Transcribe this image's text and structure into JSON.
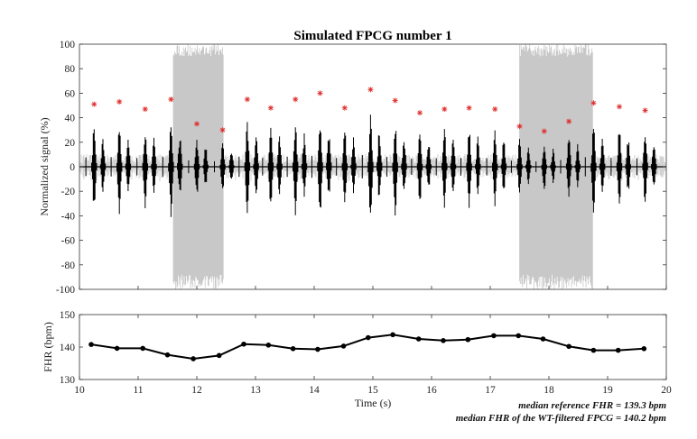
{
  "chart_data": [
    {
      "type": "line",
      "title": "Simulated FPCG number 1",
      "xlabel": "",
      "ylabel": "Normalized signal (%)",
      "xlim": [
        10,
        20
      ],
      "ylim": [
        -100,
        100
      ],
      "yticks": [
        "100",
        "80",
        "60",
        "40",
        "20",
        "0",
        "-20",
        "-40",
        "-60",
        "-80",
        "-100"
      ],
      "noise_segments_s": [
        [
          11.6,
          12.45
        ],
        [
          17.5,
          18.75
        ]
      ],
      "peaks": {
        "marker": "*",
        "color": "#e03030",
        "x": [
          10.25,
          10.68,
          11.12,
          11.56,
          12.0,
          12.44,
          12.86,
          13.26,
          13.68,
          14.1,
          14.52,
          14.96,
          15.38,
          15.8,
          16.22,
          16.64,
          17.08,
          17.5,
          17.92,
          18.34,
          18.76,
          19.2,
          19.64
        ],
        "y": [
          51,
          53,
          47,
          55,
          35,
          30,
          55,
          48,
          55,
          60,
          48,
          63,
          54,
          44,
          47,
          48,
          47,
          33,
          29,
          37,
          52,
          49,
          46
        ]
      },
      "signal_color": "#000000",
      "noise_color": "#c8c8c8"
    },
    {
      "type": "line",
      "xlabel": "Time (s)",
      "ylabel": "FHR (bpm)",
      "xlim": [
        10,
        20
      ],
      "ylim": [
        130,
        150
      ],
      "xticks": [
        "10",
        "11",
        "12",
        "13",
        "14",
        "15",
        "16",
        "17",
        "18",
        "19",
        "20"
      ],
      "yticks": [
        "150",
        "140",
        "130"
      ],
      "series": [
        {
          "name": "FHR",
          "x": [
            10.2,
            10.64,
            11.08,
            11.5,
            11.94,
            12.38,
            12.8,
            13.22,
            13.64,
            14.06,
            14.5,
            14.92,
            15.34,
            15.78,
            16.2,
            16.62,
            17.06,
            17.48,
            17.9,
            18.34,
            18.76,
            19.18,
            19.62
          ],
          "values": [
            140.8,
            139.6,
            139.6,
            137.6,
            136.4,
            137.4,
            140.9,
            140.6,
            139.5,
            139.3,
            140.3,
            142.9,
            143.8,
            142.5,
            142.0,
            142.3,
            143.5,
            143.5,
            142.5,
            140.2,
            139.0,
            139.0,
            139.5
          ]
        }
      ],
      "annotations": [
        "median reference FHR =  139.3 bpm",
        "median FHR of the WT-filtered FPCG = 140.2 bpm"
      ]
    }
  ]
}
